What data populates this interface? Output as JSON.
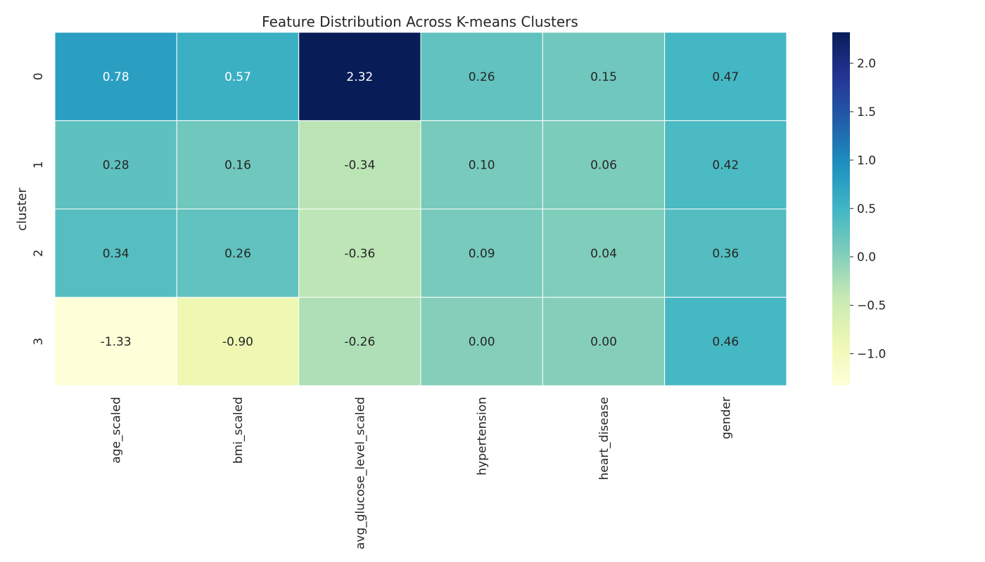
{
  "chart_data": {
    "type": "heatmap",
    "title": "Feature Distribution Across K-means Clusters",
    "xlabel": "",
    "ylabel": "cluster",
    "columns": [
      "age_scaled",
      "bmi_scaled",
      "avg_glucose_level_scaled",
      "hypertension",
      "heart_disease",
      "gender"
    ],
    "rows": [
      "0",
      "1",
      "2",
      "3"
    ],
    "values": [
      [
        0.78,
        0.57,
        2.32,
        0.26,
        0.15,
        0.47
      ],
      [
        0.28,
        0.16,
        -0.34,
        0.1,
        0.06,
        0.42
      ],
      [
        0.34,
        0.26,
        -0.36,
        0.09,
        0.04,
        0.36
      ],
      [
        -1.33,
        -0.9,
        -0.26,
        0.0,
        0.0,
        0.46
      ]
    ],
    "value_labels": [
      [
        "0.78",
        "0.57",
        "2.32",
        "0.26",
        "0.15",
        "0.47"
      ],
      [
        "0.28",
        "0.16",
        "-0.34",
        "0.10",
        "0.06",
        "0.42"
      ],
      [
        "0.34",
        "0.26",
        "-0.36",
        "0.09",
        "0.04",
        "0.36"
      ],
      [
        "-1.33",
        "-0.90",
        "-0.26",
        "0.00",
        "0.00",
        "0.46"
      ]
    ],
    "colormap": "YlGnBu",
    "color_range": [
      -1.33,
      2.32
    ],
    "colorbar_ticks": [
      2.0,
      1.5,
      1.0,
      0.5,
      0.0,
      -0.5,
      -1.0
    ],
    "colorbar_tick_labels": [
      "2.0",
      "1.5",
      "1.0",
      "0.5",
      "0.0",
      "−0.5",
      "−1.0"
    ],
    "grid": false,
    "cell_border_color": "#ffffff"
  }
}
